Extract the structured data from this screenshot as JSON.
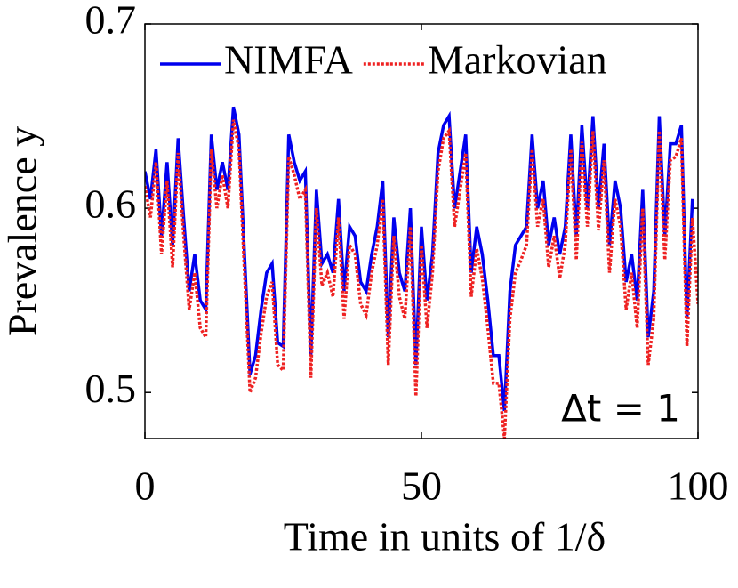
{
  "chart_data": {
    "type": "line",
    "x_label": "Time in units of 1/δ",
    "y_label": "Prevalence y",
    "annotation": "Δt = 1",
    "xlim": [
      0,
      100
    ],
    "xticks": [
      0,
      50,
      100
    ],
    "ylim": [
      0.475,
      0.7
    ],
    "yticks": [
      0.5,
      0.6,
      0.7
    ],
    "legend": "top",
    "x": [
      0,
      1,
      2,
      3,
      4,
      5,
      6,
      7,
      8,
      9,
      10,
      11,
      12,
      13,
      14,
      15,
      16,
      17,
      18,
      19,
      20,
      21,
      22,
      23,
      24,
      25,
      26,
      27,
      28,
      29,
      30,
      31,
      32,
      33,
      34,
      35,
      36,
      37,
      38,
      39,
      40,
      41,
      42,
      43,
      44,
      45,
      46,
      47,
      48,
      49,
      50,
      51,
      52,
      53,
      54,
      55,
      56,
      57,
      58,
      59,
      60,
      61,
      62,
      63,
      64,
      65,
      66,
      67,
      68,
      69,
      70,
      71,
      72,
      73,
      74,
      75,
      76,
      77,
      78,
      79,
      80,
      81,
      82,
      83,
      84,
      85,
      86,
      87,
      88,
      89,
      90,
      91,
      92,
      93,
      94,
      95,
      96,
      97,
      98,
      99,
      100
    ],
    "series": [
      {
        "name": "NIMFA",
        "color": "#0000ee",
        "style": "solid",
        "values": [
          0.62,
          0.605,
          0.632,
          0.585,
          0.625,
          0.58,
          0.638,
          0.595,
          0.555,
          0.575,
          0.55,
          0.545,
          0.64,
          0.61,
          0.625,
          0.61,
          0.655,
          0.64,
          0.575,
          0.51,
          0.52,
          0.545,
          0.565,
          0.57,
          0.527,
          0.525,
          0.64,
          0.625,
          0.615,
          0.62,
          0.52,
          0.61,
          0.57,
          0.575,
          0.565,
          0.605,
          0.555,
          0.59,
          0.585,
          0.56,
          0.555,
          0.575,
          0.59,
          0.615,
          0.53,
          0.595,
          0.565,
          0.555,
          0.6,
          0.515,
          0.59,
          0.55,
          0.575,
          0.63,
          0.645,
          0.65,
          0.6,
          0.62,
          0.64,
          0.565,
          0.59,
          0.575,
          0.55,
          0.52,
          0.52,
          0.49,
          0.555,
          0.58,
          0.585,
          0.59,
          0.64,
          0.6,
          0.615,
          0.58,
          0.595,
          0.575,
          0.59,
          0.64,
          0.585,
          0.645,
          0.6,
          0.65,
          0.6,
          0.635,
          0.58,
          0.615,
          0.6,
          0.56,
          0.575,
          0.55,
          0.61,
          0.53,
          0.555,
          0.65,
          0.585,
          0.635,
          0.635,
          0.645,
          0.54,
          0.605,
          null
        ]
      },
      {
        "name": "Markovian",
        "color": "#ee2222",
        "style": "dotted",
        "values": [
          0.612,
          0.595,
          0.625,
          0.575,
          0.615,
          0.568,
          0.63,
          0.585,
          0.545,
          0.565,
          0.535,
          0.53,
          0.632,
          0.6,
          0.618,
          0.6,
          0.648,
          0.632,
          0.565,
          0.5,
          0.508,
          0.532,
          0.552,
          0.56,
          0.515,
          0.512,
          0.628,
          0.618,
          0.605,
          0.61,
          0.508,
          0.6,
          0.558,
          0.565,
          0.552,
          0.595,
          0.54,
          0.58,
          0.575,
          0.548,
          0.542,
          0.565,
          0.58,
          0.605,
          0.515,
          0.585,
          0.552,
          0.54,
          0.59,
          0.498,
          0.58,
          0.535,
          0.565,
          0.62,
          0.638,
          0.642,
          0.59,
          0.61,
          0.63,
          0.552,
          0.578,
          0.562,
          0.535,
          0.505,
          0.505,
          0.475,
          0.54,
          0.565,
          0.572,
          0.58,
          0.632,
          0.59,
          0.605,
          0.568,
          0.585,
          0.562,
          0.58,
          0.632,
          0.572,
          0.636,
          0.59,
          0.642,
          0.588,
          0.626,
          0.565,
          0.605,
          0.59,
          0.545,
          0.565,
          0.535,
          0.6,
          0.515,
          0.54,
          0.642,
          0.572,
          0.626,
          0.628,
          0.638,
          0.525,
          0.595,
          0.548
        ]
      }
    ]
  }
}
